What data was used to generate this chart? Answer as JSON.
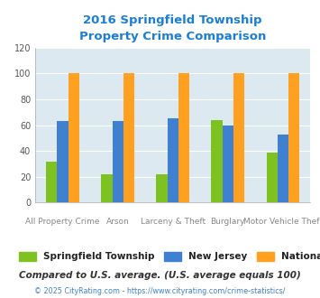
{
  "title": "2016 Springfield Township\nProperty Crime Comparison",
  "title_color": "#1a7fd4",
  "categories": [
    "All Property Crime",
    "Arson",
    "Larceny & Theft",
    "Burglary",
    "Motor Vehicle Theft"
  ],
  "series": {
    "Springfield Township": [
      32,
      22,
      22,
      64,
      39
    ],
    "New Jersey": [
      63,
      63,
      65,
      60,
      53
    ],
    "National": [
      100,
      100,
      100,
      100,
      100
    ]
  },
  "colors": {
    "Springfield Township": "#7dc220",
    "New Jersey": "#4080d0",
    "National": "#ffa020"
  },
  "ylim": [
    0,
    120
  ],
  "yticks": [
    0,
    20,
    40,
    60,
    80,
    100,
    120
  ],
  "xlabel_top": [
    "",
    "Arson",
    "",
    "Burglary",
    ""
  ],
  "xlabel_bottom": [
    "All Property Crime",
    "",
    "Larceny & Theft",
    "",
    "Motor Vehicle Theft"
  ],
  "plot_bg_color": "#dce9f0",
  "fig_bg_color": "#ffffff",
  "legend_labels": [
    "Springfield Township",
    "New Jersey",
    "National"
  ],
  "footnote": "Compared to U.S. average. (U.S. average equals 100)",
  "footnote2": "© 2025 CityRating.com - https://www.cityrating.com/crime-statistics/",
  "footnote_color": "#333333",
  "footnote2_color": "#4080d0"
}
